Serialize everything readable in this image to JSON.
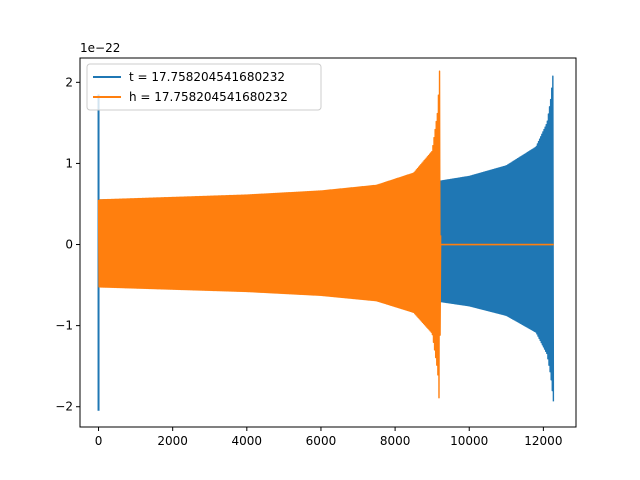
{
  "chart_data": {
    "type": "line",
    "title": "",
    "xlabel": "",
    "ylabel": "",
    "y_offset_label": "1e−22",
    "xlim": [
      -500,
      12880
    ],
    "ylim": [
      -2.25,
      2.3
    ],
    "x_ticks": [
      0,
      2000,
      4000,
      6000,
      8000,
      10000,
      12000
    ],
    "x_tick_labels": [
      "0",
      "2000",
      "4000",
      "6000",
      "8000",
      "10000",
      "12000"
    ],
    "y_ticks": [
      -2,
      -1,
      0,
      1,
      2
    ],
    "y_tick_labels": [
      "−2",
      "−1",
      "0",
      "1",
      "2"
    ],
    "grid": false,
    "legend_position": "upper-left",
    "series": [
      {
        "name": "t = 17.758204541680232",
        "color": "#1f77b4",
        "x_start": 0,
        "x_end": 12280,
        "initial_spike": [
          -2.05,
          1.85
        ],
        "envelope_points": [
          [
            0,
            0.55
          ],
          [
            2000,
            0.56
          ],
          [
            4000,
            0.58
          ],
          [
            6000,
            0.62
          ],
          [
            8000,
            0.7
          ],
          [
            9200,
            0.78
          ],
          [
            10000,
            0.84
          ],
          [
            11000,
            0.97
          ],
          [
            11800,
            1.2
          ],
          [
            12100,
            1.5
          ],
          [
            12200,
            1.8
          ],
          [
            12270,
            2.15
          ],
          [
            12280,
            0
          ]
        ],
        "negative_scale": 0.9
      },
      {
        "name": "h = 17.758204541680232",
        "color": "#ff7f0e",
        "x_start": 0,
        "x_end": 12280,
        "envelope_points": [
          [
            0,
            0.55
          ],
          [
            2000,
            0.58
          ],
          [
            4000,
            0.61
          ],
          [
            6000,
            0.66
          ],
          [
            7500,
            0.73
          ],
          [
            8500,
            0.88
          ],
          [
            9000,
            1.15
          ],
          [
            9150,
            1.65
          ],
          [
            9200,
            2.15
          ],
          [
            9230,
            0
          ]
        ],
        "negative_scale": 0.95,
        "flat_after": 9230
      }
    ]
  }
}
